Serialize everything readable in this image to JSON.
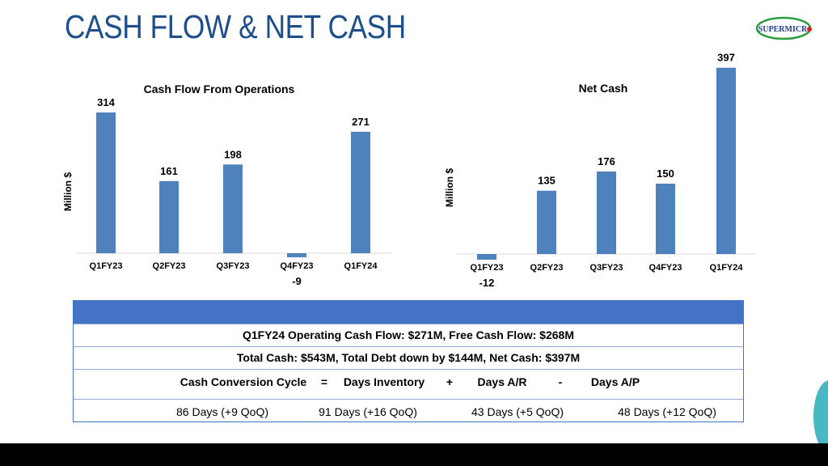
{
  "title": "CASH FLOW & NET CASH",
  "logo_text": "SUPERMICRO",
  "colors": {
    "bar": "#4f81bd",
    "title": "#1f4e8c",
    "table_header": "#4472c4",
    "logo_green": "#2a9d3c",
    "logo_red": "#e02020"
  },
  "chart_data": [
    {
      "type": "bar",
      "title": "Cash Flow From Operations",
      "ylabel": "Million $",
      "categories": [
        "Q1FY23",
        "Q2FY23",
        "Q3FY23",
        "Q4FY23",
        "Q1FY24"
      ],
      "values": [
        314,
        161,
        198,
        -9,
        271
      ],
      "value_labels": [
        "314",
        "161",
        "198",
        "-9",
        "271"
      ]
    },
    {
      "type": "bar",
      "title": "Net Cash",
      "ylabel": "Million $",
      "categories": [
        "Q1FY23",
        "Q2FY23",
        "Q3FY23",
        "Q4FY23",
        "Q1FY24"
      ],
      "values": [
        -12,
        135,
        176,
        150,
        397
      ],
      "value_labels": [
        "-12",
        "135",
        "176",
        "150",
        "397"
      ]
    }
  ],
  "table": {
    "row1": "Q1FY24 Operating Cash Flow: $271M, Free Cash Flow: $268M",
    "row2": "Total Cash: $543M, Total Debt down by $144M, Net Cash: $397M",
    "formula": [
      "Cash Conversion Cycle",
      "=",
      "Days Inventory",
      "+",
      "Days A/R",
      "-",
      "Days A/P"
    ],
    "values": [
      "86 Days (+9 QoQ)",
      "91 Days (+16 QoQ)",
      "43 Days (+5 QoQ)",
      "48 Days (+12 QoQ)"
    ]
  }
}
